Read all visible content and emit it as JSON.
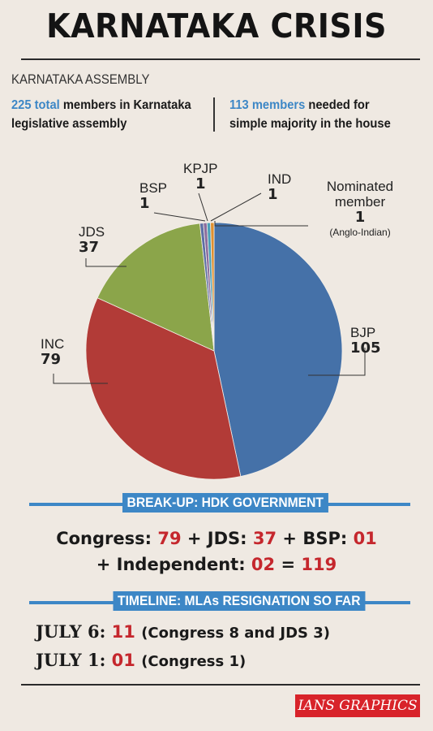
{
  "header": {
    "title": "KARNATAKA CRISIS",
    "section_label": "KARNATAKA ASSEMBLY"
  },
  "facts": {
    "left_hl": "225 total",
    "left_rest_1": " members in Karnataka",
    "left_rest_2": "legislative assembly",
    "right_hl": "113 members",
    "right_rest_1": " needed for",
    "right_rest_2": "simple majority in the house"
  },
  "chart_data": {
    "type": "pie",
    "total": 225,
    "slices": [
      {
        "label": "BJP",
        "value": 105,
        "color": "#4571a8"
      },
      {
        "label": "INC",
        "value": 79,
        "color": "#b23b37"
      },
      {
        "label": "JDS",
        "value": 37,
        "color": "#8ba54a"
      },
      {
        "label": "BSP",
        "value": 1,
        "color": "#5d6fa6"
      },
      {
        "label": "KPJP",
        "value": 1,
        "color": "#8b6c9e"
      },
      {
        "label": "IND",
        "value": 1,
        "color": "#4aa0b8"
      },
      {
        "label": "Nominated member",
        "value": 1,
        "color": "#e0902f",
        "note": "(Anglo-Indian)"
      }
    ]
  },
  "breakup": {
    "heading": "BREAK-UP: HDK GOVERNMENT",
    "line1": [
      {
        "t": "Congress: ",
        "red": false
      },
      {
        "t": "79",
        "red": true
      },
      {
        "t": " + JDS: ",
        "red": false
      },
      {
        "t": "37",
        "red": true
      },
      {
        "t": " + BSP: ",
        "red": false
      },
      {
        "t": "01",
        "red": true
      }
    ],
    "line2": [
      {
        "t": "+ Independent: ",
        "red": false
      },
      {
        "t": "02",
        "red": true
      },
      {
        "t": " = ",
        "red": false
      },
      {
        "t": "119",
        "red": true
      }
    ]
  },
  "timeline": {
    "heading": "TIMELINE: MLAs RESIGNATION SO FAR",
    "entries": [
      {
        "date": "JULY 6:",
        "count": "11",
        "note": "(Congress 8 and JDS 3)"
      },
      {
        "date": "JULY 1:",
        "count": "01",
        "note": "(Congress 1)"
      }
    ]
  },
  "credit": "IANS GRAPHICS"
}
